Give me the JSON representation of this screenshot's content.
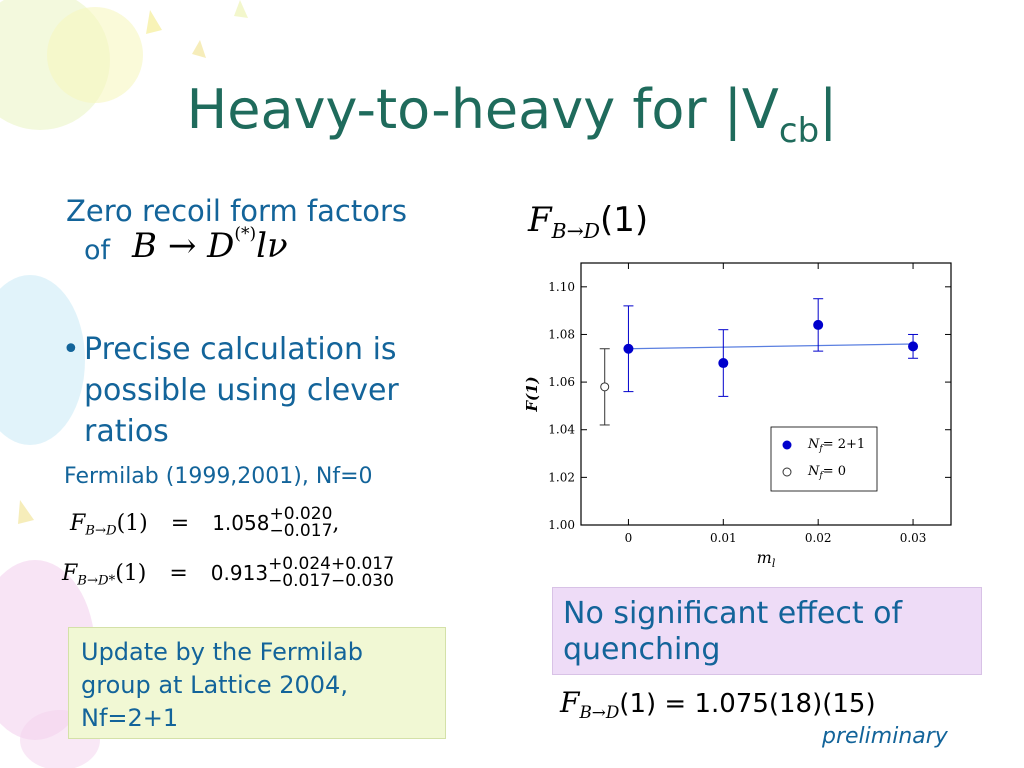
{
  "slide": {
    "title_main": "Heavy-to-heavy for |V",
    "title_sub": "cb",
    "title_end": "|",
    "left": {
      "heading_line1": "Zero recoil form factors",
      "heading_of": "of",
      "decay_B": "B",
      "decay_arrow": "→",
      "decay_D": "D",
      "decay_star": "(*)",
      "decay_lnu": "lν",
      "bullet": "•",
      "bullet_line1": "Precise calculation is",
      "bullet_line2": "possible using clever",
      "bullet_line3": "ratios",
      "citation": "Fermilab (1999,2001), Nf=0",
      "eq1_F": "F",
      "eq1_sub": "B→D",
      "eq1_arg": "(1)",
      "eq1_eq": "=",
      "eq1_val": "1.058",
      "eq1_up": "+0.020",
      "eq1_dn": "−0.017",
      "eq1_comma": ",",
      "eq2_F": "F",
      "eq2_sub": "B→D*",
      "eq2_arg": "(1)",
      "eq2_eq": "=",
      "eq2_val": "0.913",
      "eq2_up": "+0.024+0.017",
      "eq2_dn": "−0.017−0.030"
    },
    "update_box": {
      "line1": "Update by the Fermilab",
      "line2": "group at Lattice 2004,",
      "line3": "Nf=2+1"
    },
    "right": {
      "chart_heading_F": "F",
      "chart_heading_sub": "B→D",
      "chart_heading_arg": "(1)",
      "quench_line1": "No significant effect of",
      "quench_line2": "quenching",
      "result_F": "F",
      "result_sub": "B→D",
      "result_rest": "(1) = 1.075(18)(15)",
      "preliminary": "preliminary"
    }
  },
  "chart_data": {
    "type": "scatter",
    "xlabel": "m_l",
    "ylabel": "F(1)",
    "xlim": [
      -0.005,
      0.034
    ],
    "ylim": [
      1.0,
      1.11
    ],
    "x_ticks": [
      0,
      0.01,
      0.02,
      0.03
    ],
    "x_tick_labels": [
      "0",
      "0.01",
      "0.02",
      "0.03"
    ],
    "y_ticks": [
      1.0,
      1.02,
      1.04,
      1.06,
      1.08,
      1.1
    ],
    "y_tick_labels": [
      "1.00",
      "1.02",
      "1.04",
      "1.06",
      "1.08",
      "1.10"
    ],
    "legend_placement": "bottom-right",
    "grid": false,
    "series": [
      {
        "name": "N_f = 2+1",
        "marker": "filled-circle",
        "color": "#0000cc",
        "points": [
          {
            "x": 0.0,
            "y": 1.074,
            "err_up": 0.018,
            "err_dn": 0.018
          },
          {
            "x": 0.01,
            "y": 1.068,
            "err_up": 0.014,
            "err_dn": 0.014
          },
          {
            "x": 0.02,
            "y": 1.084,
            "err_up": 0.011,
            "err_dn": 0.011
          },
          {
            "x": 0.03,
            "y": 1.075,
            "err_up": 0.005,
            "err_dn": 0.005
          }
        ]
      },
      {
        "name": "N_f = 0",
        "marker": "open-circle",
        "color": "#333333",
        "points": [
          {
            "x": -0.0025,
            "y": 1.058,
            "err_up": 0.016,
            "err_dn": 0.016
          }
        ]
      }
    ],
    "fit_line": {
      "x": [
        0.0,
        0.03
      ],
      "y": [
        1.074,
        1.076
      ],
      "color": "#5a7fe0"
    },
    "legend_labels": [
      {
        "N": "N",
        "sub": "f",
        "rest": "= 2+1"
      },
      {
        "N": "N",
        "sub": "f",
        "rest": "= 0"
      }
    ]
  }
}
